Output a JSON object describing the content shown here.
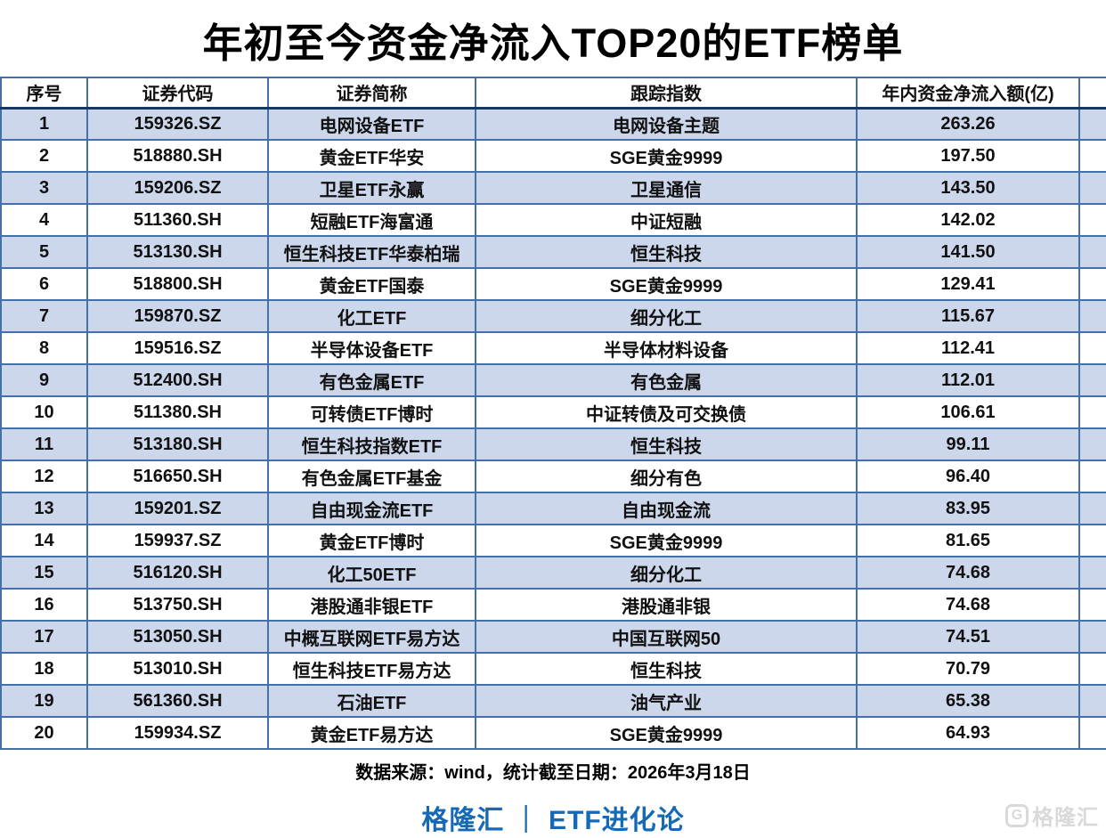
{
  "title": "年初至今资金净流入TOP20的ETF榜单",
  "table": {
    "headers": [
      "序号",
      "证券代码",
      "证券简称",
      "跟踪指数",
      "年内资金净流入额(亿)"
    ],
    "rows": [
      [
        "1",
        "159326.SZ",
        "电网设备ETF",
        "电网设备主题",
        "263.26"
      ],
      [
        "2",
        "518880.SH",
        "黄金ETF华安",
        "SGE黄金9999",
        "197.50"
      ],
      [
        "3",
        "159206.SZ",
        "卫星ETF永赢",
        "卫星通信",
        "143.50"
      ],
      [
        "4",
        "511360.SH",
        "短融ETF海富通",
        "中证短融",
        "142.02"
      ],
      [
        "5",
        "513130.SH",
        "恒生科技ETF华泰柏瑞",
        "恒生科技",
        "141.50"
      ],
      [
        "6",
        "518800.SH",
        "黄金ETF国泰",
        "SGE黄金9999",
        "129.41"
      ],
      [
        "7",
        "159870.SZ",
        "化工ETF",
        "细分化工",
        "115.67"
      ],
      [
        "8",
        "159516.SZ",
        "半导体设备ETF",
        "半导体材料设备",
        "112.41"
      ],
      [
        "9",
        "512400.SH",
        "有色金属ETF",
        "有色金属",
        "112.01"
      ],
      [
        "10",
        "511380.SH",
        "可转债ETF博时",
        "中证转债及可交换债",
        "106.61"
      ],
      [
        "11",
        "513180.SH",
        "恒生科技指数ETF",
        "恒生科技",
        "99.11"
      ],
      [
        "12",
        "516650.SH",
        "有色金属ETF基金",
        "细分有色",
        "96.40"
      ],
      [
        "13",
        "159201.SZ",
        "自由现金流ETF",
        "自由现金流",
        "83.95"
      ],
      [
        "14",
        "159937.SZ",
        "黄金ETF博时",
        "SGE黄金9999",
        "81.65"
      ],
      [
        "15",
        "516120.SH",
        "化工50ETF",
        "细分化工",
        "74.68"
      ],
      [
        "16",
        "513750.SH",
        "港股通非银ETF",
        "港股通非银",
        "74.68"
      ],
      [
        "17",
        "513050.SH",
        "中概互联网ETF易方达",
        "中国互联网50",
        "74.51"
      ],
      [
        "18",
        "513010.SH",
        "恒生科技ETF易方达",
        "恒生科技",
        "70.79"
      ],
      [
        "19",
        "561360.SH",
        "石油ETF",
        "油气产业",
        "65.38"
      ],
      [
        "20",
        "159934.SZ",
        "黄金ETF易方达",
        "SGE黄金9999",
        "64.93"
      ]
    ]
  },
  "footer": {
    "source": "数据来源：wind，统计截至日期：2026年3月18日",
    "brand": "格隆汇 ｜ ETF进化论",
    "watermark_icon": "G",
    "watermark_text": "格隆汇"
  },
  "colors": {
    "stripe": "#cdd7eb",
    "border": "#4472a8",
    "header_divider": "#17375e",
    "value_red": "#e8140e",
    "brand_blue": "#1669b4",
    "watermark_gray": "#d9d9d9"
  },
  "chart_data": {
    "type": "table",
    "title": "年初至今资金净流入TOP20的ETF榜单",
    "columns": [
      "序号",
      "证券代码",
      "证券简称",
      "跟踪指数",
      "年内资金净流入额(亿)"
    ],
    "ranks": [
      1,
      2,
      3,
      4,
      5,
      6,
      7,
      8,
      9,
      10,
      11,
      12,
      13,
      14,
      15,
      16,
      17,
      18,
      19,
      20
    ],
    "codes": [
      "159326.SZ",
      "518880.SH",
      "159206.SZ",
      "511360.SH",
      "513130.SH",
      "518800.SH",
      "159870.SZ",
      "159516.SZ",
      "512400.SH",
      "511380.SH",
      "513180.SH",
      "516650.SH",
      "159201.SZ",
      "159937.SZ",
      "516120.SH",
      "513750.SH",
      "513050.SH",
      "513010.SH",
      "561360.SH",
      "159934.SZ"
    ],
    "names": [
      "电网设备ETF",
      "黄金ETF华安",
      "卫星ETF永赢",
      "短融ETF海富通",
      "恒生科技ETF华泰柏瑞",
      "黄金ETF国泰",
      "化工ETF",
      "半导体设备ETF",
      "有色金属ETF",
      "可转债ETF博时",
      "恒生科技指数ETF",
      "有色金属ETF基金",
      "自由现金流ETF",
      "黄金ETF博时",
      "化工50ETF",
      "港股通非银ETF",
      "中概互联网ETF易方达",
      "恒生科技ETF易方达",
      "石油ETF",
      "黄金ETF易方达"
    ],
    "tracked_index": [
      "电网设备主题",
      "SGE黄金9999",
      "卫星通信",
      "中证短融",
      "恒生科技",
      "SGE黄金9999",
      "细分化工",
      "半导体材料设备",
      "有色金属",
      "中证转债及可交换债",
      "恒生科技",
      "细分有色",
      "自由现金流",
      "SGE黄金9999",
      "细分化工",
      "港股通非银",
      "中国互联网50",
      "恒生科技",
      "油气产业",
      "SGE黄金9999"
    ],
    "net_inflow_yi": [
      263.26,
      197.5,
      143.5,
      142.02,
      141.5,
      129.41,
      115.67,
      112.41,
      112.01,
      106.61,
      99.11,
      96.4,
      83.95,
      81.65,
      74.68,
      74.68,
      74.51,
      70.79,
      65.38,
      64.93
    ]
  }
}
